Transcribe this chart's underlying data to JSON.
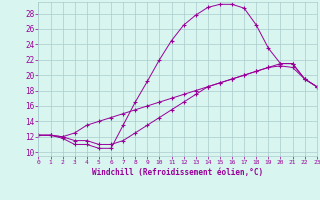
{
  "xlabel": "Windchill (Refroidissement éolien,°C)",
  "bg_color": "#d8f5f0",
  "grid_color": "#aacccc",
  "line_color": "#990099",
  "xlim": [
    0,
    23
  ],
  "ylim": [
    9.5,
    29.5
  ],
  "xticks": [
    0,
    1,
    2,
    3,
    4,
    5,
    6,
    7,
    8,
    9,
    10,
    11,
    12,
    13,
    14,
    15,
    16,
    17,
    18,
    19,
    20,
    21,
    22,
    23
  ],
  "yticks": [
    10,
    12,
    14,
    16,
    18,
    20,
    22,
    24,
    26,
    28
  ],
  "line1_x": [
    0,
    1,
    2,
    3,
    4,
    5,
    6,
    7,
    8,
    9,
    10,
    11,
    12,
    13,
    14,
    15,
    16,
    17,
    18,
    19,
    20,
    21,
    22,
    23
  ],
  "line1_y": [
    12.2,
    12.2,
    11.8,
    11.0,
    11.0,
    10.5,
    10.5,
    13.5,
    16.5,
    19.2,
    22.0,
    24.5,
    26.5,
    27.8,
    28.8,
    29.2,
    29.2,
    28.7,
    26.5,
    23.5,
    21.5,
    21.5,
    19.5,
    18.5
  ],
  "line2_x": [
    0,
    1,
    2,
    3,
    4,
    5,
    6,
    7,
    8,
    9,
    10,
    11,
    12,
    13,
    14,
    15,
    16,
    17,
    18,
    19,
    20,
    21,
    22,
    23
  ],
  "line2_y": [
    12.2,
    12.2,
    12.0,
    12.5,
    13.5,
    14.0,
    14.5,
    15.0,
    15.5,
    16.0,
    16.5,
    17.0,
    17.5,
    18.0,
    18.5,
    19.0,
    19.5,
    20.0,
    20.5,
    21.0,
    21.2,
    21.0,
    19.5,
    18.5
  ],
  "line3_x": [
    0,
    1,
    2,
    3,
    4,
    5,
    6,
    7,
    8,
    9,
    10,
    11,
    12,
    13,
    14,
    15,
    16,
    17,
    18,
    19,
    20,
    21,
    22,
    23
  ],
  "line3_y": [
    12.2,
    12.2,
    12.0,
    11.5,
    11.5,
    11.0,
    11.0,
    11.5,
    12.5,
    13.5,
    14.5,
    15.5,
    16.5,
    17.5,
    18.5,
    19.0,
    19.5,
    20.0,
    20.5,
    21.0,
    21.5,
    21.5,
    19.5,
    18.5
  ]
}
